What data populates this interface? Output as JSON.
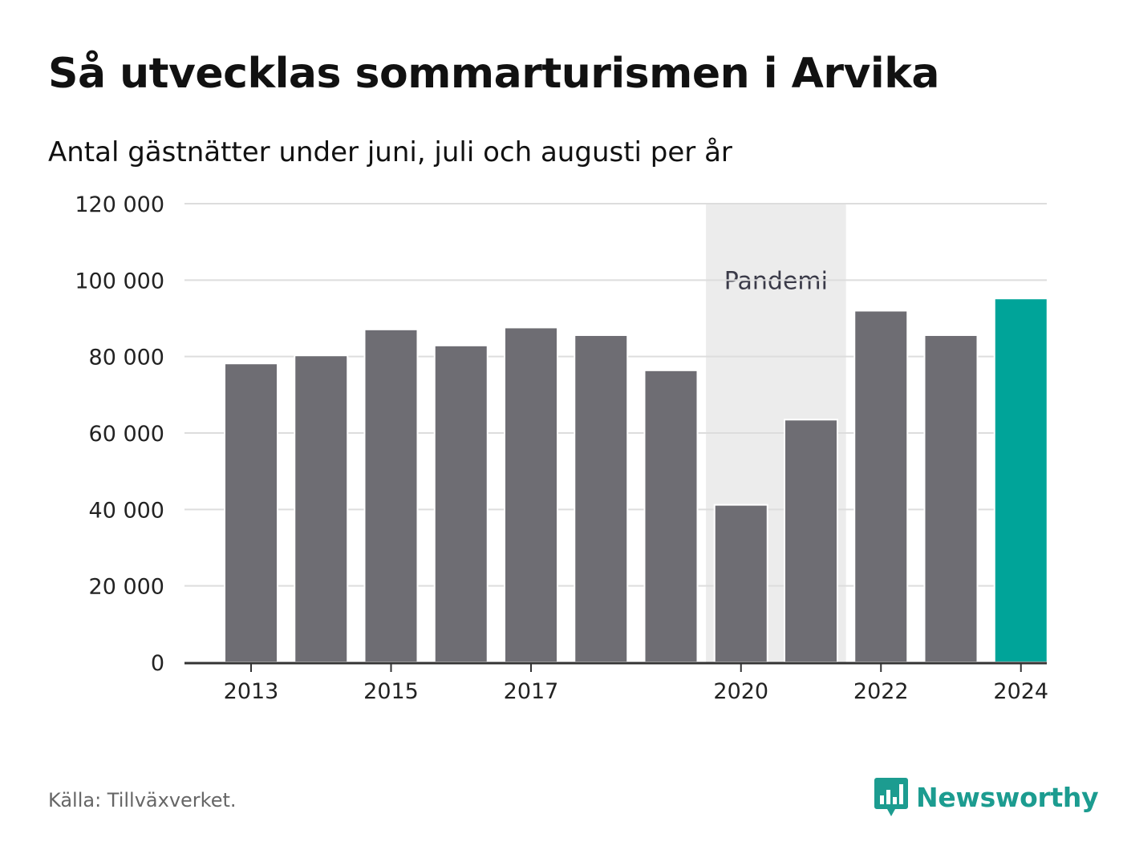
{
  "title": "Så utvecklas sommarturismen i Arvika",
  "subtitle": "Antal gästnätter under juni, juli och augusti per år",
  "source": "Källa: Tillväxverket.",
  "brand": {
    "name": "Newsworthy",
    "icon": "newsworthy-logo-icon",
    "color": "#1c9c90"
  },
  "chart_data": {
    "type": "bar",
    "categories": [
      "2013",
      "2014",
      "2015",
      "2016",
      "2017",
      "2018",
      "2019",
      "2020",
      "2021",
      "2022",
      "2023",
      "2024"
    ],
    "values": [
      78200,
      80300,
      87100,
      82900,
      87600,
      85600,
      76400,
      41200,
      63500,
      92000,
      85600,
      95200
    ],
    "x_tick_labels": [
      "2013",
      "2015",
      "2017",
      "2020",
      "2022",
      "2024"
    ],
    "y_ticks": [
      0,
      20000,
      40000,
      60000,
      80000,
      100000,
      120000
    ],
    "y_tick_labels": [
      "0",
      "20 000",
      "40 000",
      "60 000",
      "80 000",
      "100 000",
      "120 000"
    ],
    "ylim": [
      0,
      120000
    ],
    "xlabel": "",
    "ylabel": "",
    "grid": true,
    "legend": "none",
    "colors": {
      "bar": "#6e6d73",
      "highlight": "#00a499",
      "band": "#ececec",
      "grid": "#dddddd",
      "axis": "#333333"
    },
    "highlight_category": "2024",
    "annotation": {
      "label": "Pandemi",
      "from": "2020",
      "to": "2021"
    }
  }
}
